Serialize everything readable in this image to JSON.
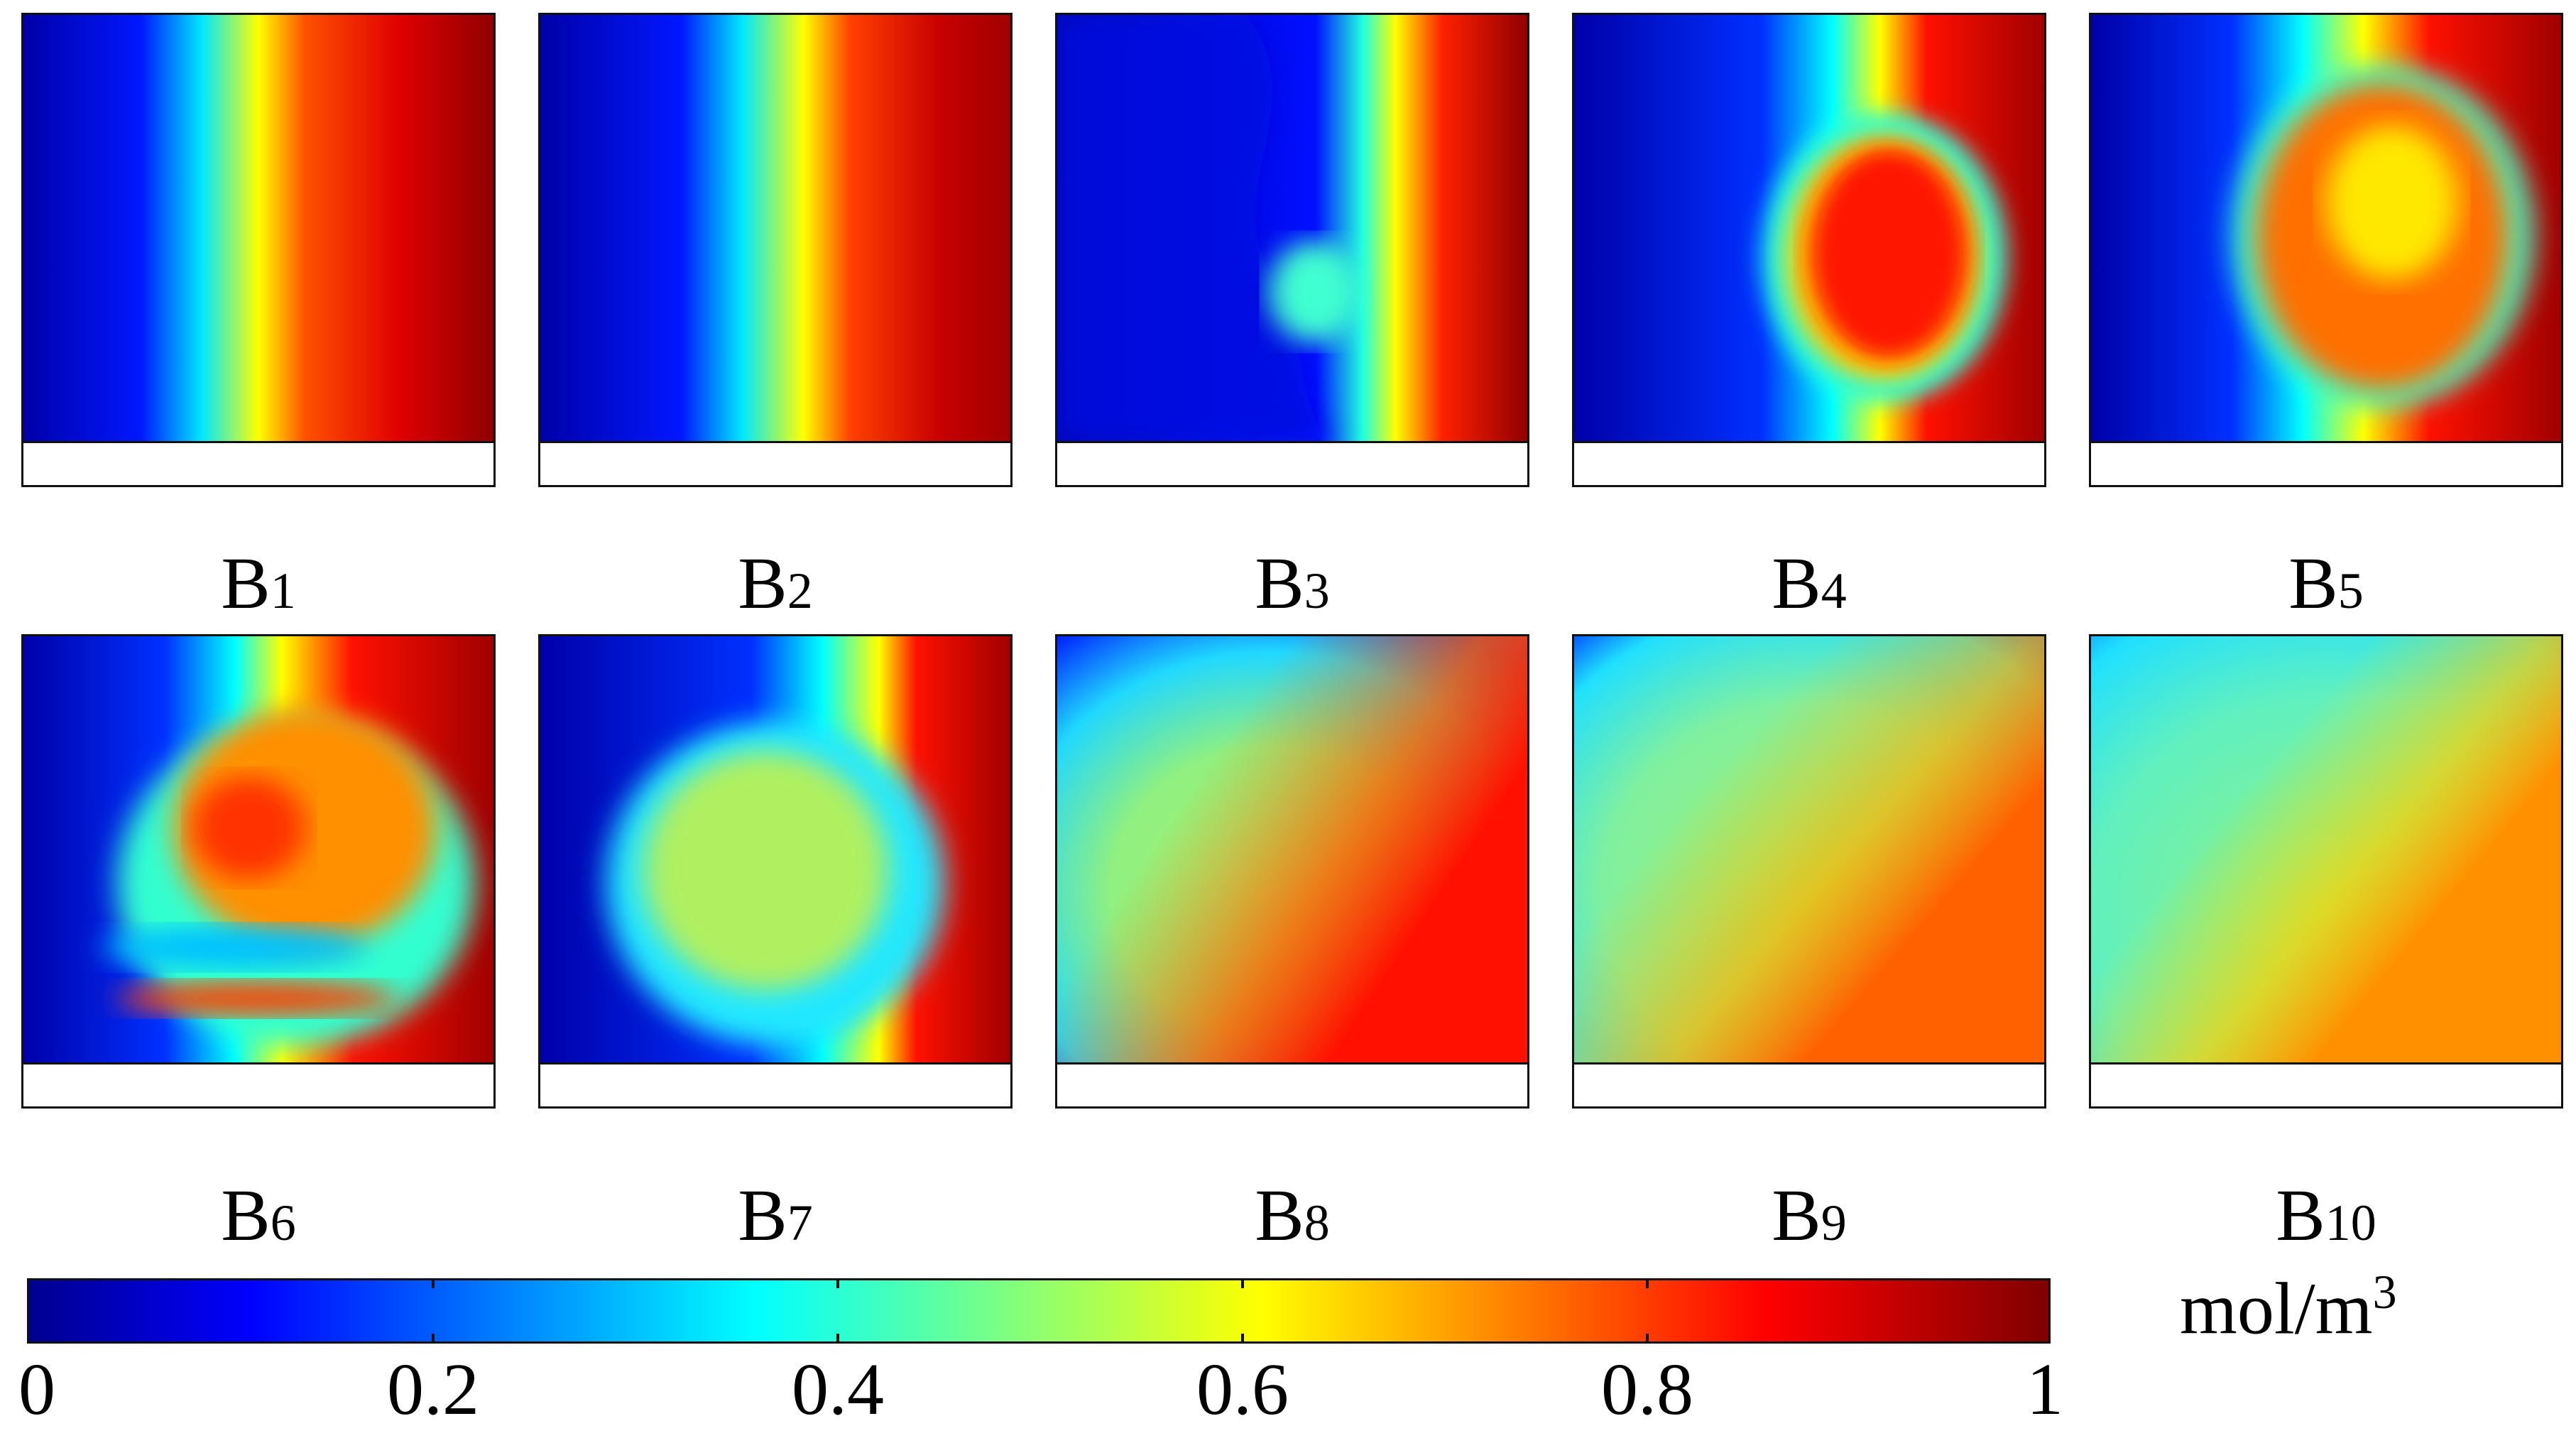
{
  "figure": {
    "panels": [
      {
        "id": "B1",
        "letter": "B",
        "sub": "1"
      },
      {
        "id": "B2",
        "letter": "B",
        "sub": "2"
      },
      {
        "id": "B3",
        "letter": "B",
        "sub": "3"
      },
      {
        "id": "B4",
        "letter": "B",
        "sub": "4"
      },
      {
        "id": "B5",
        "letter": "B",
        "sub": "5"
      },
      {
        "id": "B6",
        "letter": "B",
        "sub": "6"
      },
      {
        "id": "B7",
        "letter": "B",
        "sub": "7"
      },
      {
        "id": "B8",
        "letter": "B",
        "sub": "8"
      },
      {
        "id": "B9",
        "letter": "B",
        "sub": "9"
      },
      {
        "id": "B10",
        "letter": "B",
        "sub": "10"
      }
    ],
    "colorbar": {
      "colormap": "jet",
      "min": 0,
      "max": 1,
      "ticks": [
        "0",
        "0.2",
        "0.4",
        "0.6",
        "0.8",
        "1"
      ],
      "unit_base": "mol/m",
      "unit_exp": "3",
      "colors": [
        "#00008f",
        "#0000ff",
        "#00ffff",
        "#ffff00",
        "#ff0000",
        "#800000"
      ]
    }
  }
}
